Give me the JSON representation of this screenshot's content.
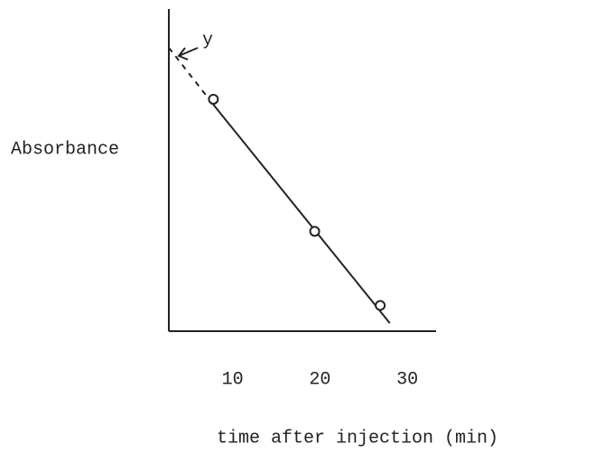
{
  "chart_data": {
    "type": "scatter",
    "x_label": "time after injection (min)",
    "y_label": "Absorbance",
    "annotation": "y",
    "xlim": [
      2.7,
      33.3
    ],
    "ylim": [
      0,
      1
    ],
    "xticks": [
      10,
      20,
      30
    ],
    "color": "#222222",
    "points": {
      "x": [
        7.8,
        19.4,
        26.9
      ],
      "values": [
        0.72,
        0.31,
        0.08
      ]
    },
    "fit_line": {
      "x": [
        7.6,
        28.0
      ],
      "values": [
        0.71,
        0.025
      ]
    },
    "extrapolation": {
      "x": [
        2.7,
        7.6
      ],
      "values": [
        0.88,
        0.71
      ]
    }
  }
}
